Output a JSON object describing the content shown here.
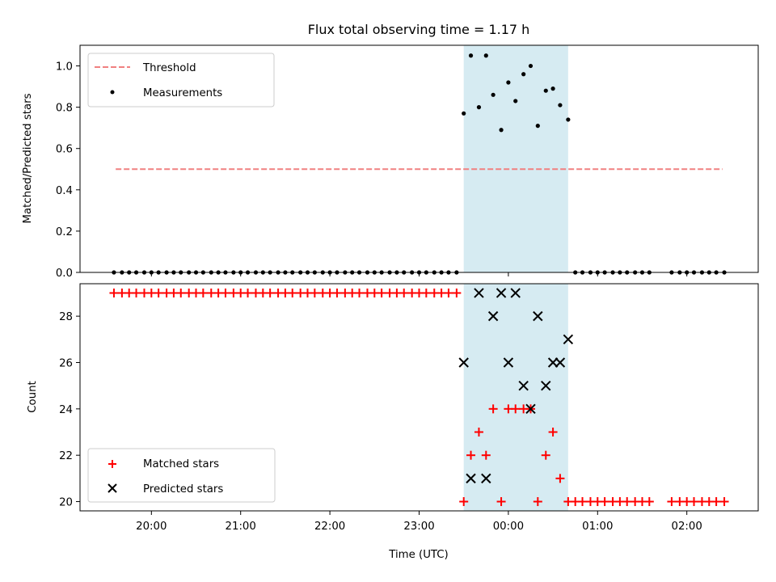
{
  "chart_data": {
    "type": "scatter",
    "title": "Flux total observing time = 1.17 h",
    "x_unit": "hours relative to 00:00 UTC",
    "xlabel": "Time (UTC)",
    "xlim": [
      -4.8,
      2.8
    ],
    "x_ticks": [
      {
        "value": -4,
        "label": "20:00"
      },
      {
        "value": -3,
        "label": "21:00"
      },
      {
        "value": -2,
        "label": "22:00"
      },
      {
        "value": -1,
        "label": "23:00"
      },
      {
        "value": 0,
        "label": "00:00"
      },
      {
        "value": 1,
        "label": "01:00"
      },
      {
        "value": 2,
        "label": "02:00"
      }
    ],
    "highlight_span": {
      "x_start": -0.5,
      "x_end": 0.67,
      "color": "#add8e6"
    },
    "top": {
      "ylabel": "Matched/Predicted stars",
      "ylim": [
        0.0,
        1.1
      ],
      "y_ticks": [
        {
          "value": 0.0,
          "label": "0.0"
        },
        {
          "value": 0.2,
          "label": "0.2"
        },
        {
          "value": 0.4,
          "label": "0.4"
        },
        {
          "value": 0.6,
          "label": "0.6"
        },
        {
          "value": 0.8,
          "label": "0.8"
        },
        {
          "value": 1.0,
          "label": "1.0"
        }
      ],
      "threshold": {
        "name": "Threshold",
        "value": 0.5,
        "x_start": -4.4,
        "x_end": 2.4,
        "color": "#f08080"
      },
      "measurements": {
        "name": "Measurements",
        "color": "#000000",
        "points": [
          [
            -4.42,
            0
          ],
          [
            -4.33,
            0
          ],
          [
            -4.25,
            0
          ],
          [
            -4.17,
            0
          ],
          [
            -4.08,
            0
          ],
          [
            -4.0,
            0
          ],
          [
            -3.92,
            0
          ],
          [
            -3.83,
            0
          ],
          [
            -3.75,
            0
          ],
          [
            -3.67,
            0
          ],
          [
            -3.58,
            0
          ],
          [
            -3.5,
            0
          ],
          [
            -3.42,
            0
          ],
          [
            -3.33,
            0
          ],
          [
            -3.25,
            0
          ],
          [
            -3.17,
            0
          ],
          [
            -3.08,
            0
          ],
          [
            -3.0,
            0
          ],
          [
            -2.92,
            0
          ],
          [
            -2.83,
            0
          ],
          [
            -2.75,
            0
          ],
          [
            -2.67,
            0
          ],
          [
            -2.58,
            0
          ],
          [
            -2.5,
            0
          ],
          [
            -2.42,
            0
          ],
          [
            -2.33,
            0
          ],
          [
            -2.25,
            0
          ],
          [
            -2.17,
            0
          ],
          [
            -2.08,
            0
          ],
          [
            -2.0,
            0
          ],
          [
            -1.92,
            0
          ],
          [
            -1.83,
            0
          ],
          [
            -1.75,
            0
          ],
          [
            -1.67,
            0
          ],
          [
            -1.58,
            0
          ],
          [
            -1.5,
            0
          ],
          [
            -1.42,
            0
          ],
          [
            -1.33,
            0
          ],
          [
            -1.25,
            0
          ],
          [
            -1.17,
            0
          ],
          [
            -1.08,
            0
          ],
          [
            -1.0,
            0
          ],
          [
            -0.92,
            0
          ],
          [
            -0.83,
            0
          ],
          [
            -0.75,
            0
          ],
          [
            -0.67,
            0
          ],
          [
            -0.58,
            0
          ],
          [
            -0.5,
            0.77
          ],
          [
            -0.42,
            1.05
          ],
          [
            -0.33,
            0.8
          ],
          [
            -0.25,
            1.05
          ],
          [
            -0.17,
            0.86
          ],
          [
            -0.08,
            0.69
          ],
          [
            0.0,
            0.92
          ],
          [
            0.08,
            0.83
          ],
          [
            0.17,
            0.96
          ],
          [
            0.25,
            1.0
          ],
          [
            0.33,
            0.71
          ],
          [
            0.42,
            0.88
          ],
          [
            0.5,
            0.89
          ],
          [
            0.58,
            0.81
          ],
          [
            0.67,
            0.74
          ],
          [
            0.75,
            0
          ],
          [
            0.83,
            0
          ],
          [
            0.92,
            0
          ],
          [
            1.0,
            0
          ],
          [
            1.08,
            0
          ],
          [
            1.17,
            0
          ],
          [
            1.25,
            0
          ],
          [
            1.33,
            0
          ],
          [
            1.42,
            0
          ],
          [
            1.5,
            0
          ],
          [
            1.58,
            0
          ],
          [
            1.83,
            0
          ],
          [
            1.92,
            0
          ],
          [
            2.0,
            0
          ],
          [
            2.08,
            0
          ],
          [
            2.17,
            0
          ],
          [
            2.25,
            0
          ],
          [
            2.33,
            0
          ],
          [
            2.42,
            0
          ]
        ]
      }
    },
    "bottom": {
      "ylabel": "Count",
      "ylim": [
        19.6,
        29.4
      ],
      "y_ticks": [
        {
          "value": 20,
          "label": "20"
        },
        {
          "value": 22,
          "label": "22"
        },
        {
          "value": 24,
          "label": "24"
        },
        {
          "value": 26,
          "label": "26"
        },
        {
          "value": 28,
          "label": "28"
        }
      ],
      "series": [
        {
          "name": "Matched stars",
          "marker": "plus",
          "color": "#ff0000",
          "points": [
            [
              -4.42,
              29
            ],
            [
              -4.33,
              29
            ],
            [
              -4.25,
              29
            ],
            [
              -4.17,
              29
            ],
            [
              -4.08,
              29
            ],
            [
              -4.0,
              29
            ],
            [
              -3.92,
              29
            ],
            [
              -3.83,
              29
            ],
            [
              -3.75,
              29
            ],
            [
              -3.67,
              29
            ],
            [
              -3.58,
              29
            ],
            [
              -3.5,
              29
            ],
            [
              -3.42,
              29
            ],
            [
              -3.33,
              29
            ],
            [
              -3.25,
              29
            ],
            [
              -3.17,
              29
            ],
            [
              -3.08,
              29
            ],
            [
              -3.0,
              29
            ],
            [
              -2.92,
              29
            ],
            [
              -2.83,
              29
            ],
            [
              -2.75,
              29
            ],
            [
              -2.67,
              29
            ],
            [
              -2.58,
              29
            ],
            [
              -2.5,
              29
            ],
            [
              -2.42,
              29
            ],
            [
              -2.33,
              29
            ],
            [
              -2.25,
              29
            ],
            [
              -2.17,
              29
            ],
            [
              -2.08,
              29
            ],
            [
              -2.0,
              29
            ],
            [
              -1.92,
              29
            ],
            [
              -1.83,
              29
            ],
            [
              -1.75,
              29
            ],
            [
              -1.67,
              29
            ],
            [
              -1.58,
              29
            ],
            [
              -1.5,
              29
            ],
            [
              -1.42,
              29
            ],
            [
              -1.33,
              29
            ],
            [
              -1.25,
              29
            ],
            [
              -1.17,
              29
            ],
            [
              -1.08,
              29
            ],
            [
              -1.0,
              29
            ],
            [
              -0.92,
              29
            ],
            [
              -0.83,
              29
            ],
            [
              -0.75,
              29
            ],
            [
              -0.67,
              29
            ],
            [
              -0.58,
              29
            ],
            [
              -0.5,
              20
            ],
            [
              -0.42,
              22
            ],
            [
              -0.33,
              23
            ],
            [
              -0.25,
              22
            ],
            [
              -0.17,
              24
            ],
            [
              -0.08,
              20
            ],
            [
              0.0,
              24
            ],
            [
              0.08,
              24
            ],
            [
              0.17,
              24
            ],
            [
              0.25,
              24
            ],
            [
              0.33,
              20
            ],
            [
              0.42,
              22
            ],
            [
              0.5,
              23
            ],
            [
              0.58,
              21
            ],
            [
              0.67,
              20
            ],
            [
              0.75,
              20
            ],
            [
              0.83,
              20
            ],
            [
              0.92,
              20
            ],
            [
              1.0,
              20
            ],
            [
              1.08,
              20
            ],
            [
              1.17,
              20
            ],
            [
              1.25,
              20
            ],
            [
              1.33,
              20
            ],
            [
              1.42,
              20
            ],
            [
              1.5,
              20
            ],
            [
              1.58,
              20
            ],
            [
              1.83,
              20
            ],
            [
              1.92,
              20
            ],
            [
              2.0,
              20
            ],
            [
              2.08,
              20
            ],
            [
              2.17,
              20
            ],
            [
              2.25,
              20
            ],
            [
              2.33,
              20
            ],
            [
              2.42,
              20
            ]
          ]
        },
        {
          "name": "Predicted stars",
          "marker": "x",
          "color": "#000000",
          "points": [
            [
              -0.5,
              26
            ],
            [
              -0.42,
              21
            ],
            [
              -0.33,
              29
            ],
            [
              -0.25,
              21
            ],
            [
              -0.17,
              28
            ],
            [
              -0.08,
              29
            ],
            [
              0.0,
              26
            ],
            [
              0.08,
              29
            ],
            [
              0.17,
              25
            ],
            [
              0.25,
              24
            ],
            [
              0.33,
              28
            ],
            [
              0.42,
              25
            ],
            [
              0.5,
              26
            ],
            [
              0.58,
              26
            ],
            [
              0.67,
              27
            ]
          ]
        }
      ]
    }
  }
}
